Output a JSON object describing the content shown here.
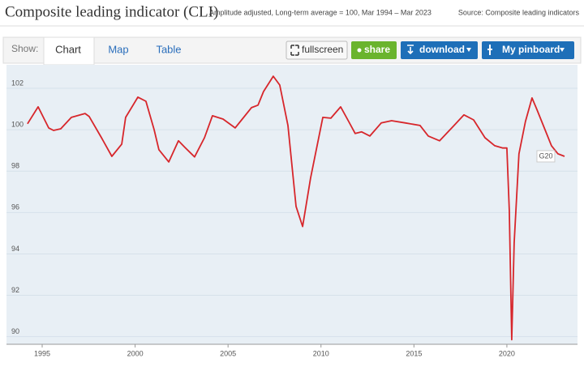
{
  "header": {
    "title": "Composite leading indicator (CLI)",
    "subtitle": "Amplitude adjusted, Long-term average = 100, Mar 1994 – Mar 2023",
    "source": "Source: Composite leading indicators"
  },
  "toolbar": {
    "show_label": "Show:",
    "tabs": [
      "Chart",
      "Map",
      "Table"
    ],
    "buttons": [
      "fullscreen",
      "share",
      "download",
      "My pinboard"
    ]
  },
  "chart_data": {
    "type": "line",
    "x": [
      1994.21,
      1994.78,
      1995.35,
      1995.61,
      1996.0,
      1996.57,
      1997.31,
      1997.53,
      1998.19,
      1998.75,
      1999.28,
      1999.49,
      2000.15,
      2000.58,
      2001.02,
      2001.28,
      2001.81,
      2002.33,
      2002.68,
      2003.2,
      2003.73,
      2004.16,
      2004.73,
      2005.38,
      2005.73,
      2006.26,
      2006.61,
      2006.91,
      2007.43,
      2007.78,
      2008.22,
      2008.66,
      2009.01,
      2009.44,
      2010.1,
      2010.53,
      2011.06,
      2011.49,
      2011.84,
      2012.19,
      2012.63,
      2013.24,
      2013.8,
      2014.55,
      2015.33,
      2015.77,
      2016.38,
      2017.16,
      2017.69,
      2018.21,
      2018.82,
      2019.35,
      2019.78,
      2020.0,
      2020.13,
      2020.26,
      2020.39,
      2020.65,
      2021.0,
      2021.35,
      2021.61,
      2022.05,
      2022.4,
      2022.75,
      2023.1
    ],
    "series": [
      {
        "name": "G20",
        "color": "#d7262b",
        "values": [
          100.05,
          100.87,
          99.85,
          99.73,
          99.81,
          100.36,
          100.55,
          100.4,
          99.38,
          98.48,
          99.07,
          100.36,
          101.34,
          101.14,
          99.77,
          98.8,
          98.21,
          99.23,
          98.91,
          98.45,
          99.38,
          100.44,
          100.28,
          99.85,
          100.24,
          100.83,
          100.95,
          101.61,
          102.35,
          101.92,
          99.97,
          96.06,
          95.09,
          97.43,
          100.36,
          100.32,
          100.87,
          100.16,
          99.58,
          99.66,
          99.46,
          100.09,
          100.2,
          100.09,
          99.97,
          99.46,
          99.23,
          99.97,
          100.48,
          100.24,
          99.38,
          98.99,
          98.88,
          98.88,
          95.87,
          89.62,
          94.3,
          98.6,
          100.16,
          101.3,
          100.75,
          99.77,
          98.99,
          98.6,
          98.48
        ]
      }
    ],
    "xlim": [
      1993.08,
      2023.8
    ],
    "xticks": [
      1995,
      2000,
      2005,
      2010,
      2015,
      2020
    ],
    "ylim": [
      89.4,
      102.9
    ],
    "yticks": [
      90,
      92,
      94,
      96,
      98,
      100,
      102
    ],
    "grid": true
  }
}
